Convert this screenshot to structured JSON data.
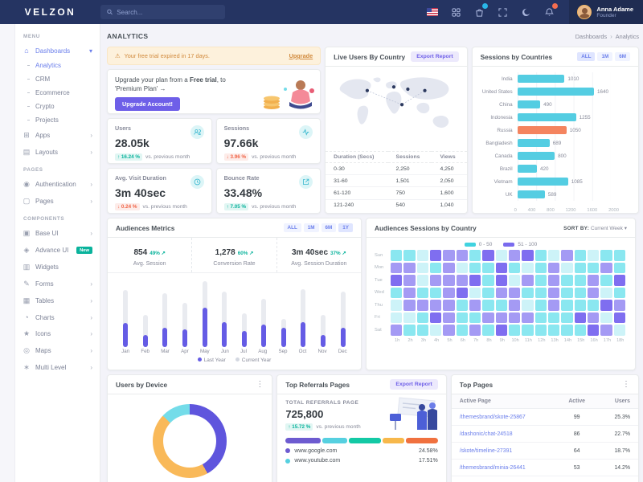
{
  "header": {
    "brand": "VELZON",
    "search_placeholder": "Search...",
    "user": {
      "name": "Anna Adame",
      "role": "Founder"
    }
  },
  "sidebar": {
    "sections": [
      {
        "label": "MENU",
        "items": [
          {
            "glyph": "⌂",
            "label": "Dashboards",
            "active": true,
            "caret": "▾",
            "sub": [
              {
                "label": "Analytics",
                "active": true
              },
              {
                "label": "CRM"
              },
              {
                "label": "Ecommerce"
              },
              {
                "label": "Crypto"
              },
              {
                "label": "Projects"
              }
            ]
          },
          {
            "glyph": "⊞",
            "label": "Apps",
            "chevron": "›"
          },
          {
            "glyph": "▤",
            "label": "Layouts",
            "chevron": "›"
          }
        ]
      },
      {
        "label": "PAGES",
        "items": [
          {
            "glyph": "◉",
            "label": "Authentication",
            "chevron": "›"
          },
          {
            "glyph": "▢",
            "label": "Pages",
            "chevron": "›"
          }
        ]
      },
      {
        "label": "COMPONENTS",
        "items": [
          {
            "glyph": "▣",
            "label": "Base UI",
            "chevron": "›"
          },
          {
            "glyph": "◈",
            "label": "Advance UI",
            "badge": "New"
          },
          {
            "glyph": "▥",
            "label": "Widgets"
          },
          {
            "glyph": "✎",
            "label": "Forms",
            "chevron": "›"
          },
          {
            "glyph": "▦",
            "label": "Tables",
            "chevron": "›"
          },
          {
            "glyph": "◔",
            "label": "Charts",
            "chevron": "›"
          },
          {
            "glyph": "★",
            "label": "Icons",
            "chevron": "›"
          },
          {
            "glyph": "◎",
            "label": "Maps",
            "chevron": "›"
          },
          {
            "glyph": "∗",
            "label": "Multi Level",
            "chevron": "›"
          }
        ]
      }
    ]
  },
  "page": {
    "title": "ANALYTICS",
    "breadcrumb_root": "Dashboards",
    "breadcrumb_sep": "›",
    "breadcrumb_current": "Analytics"
  },
  "trial_alert": {
    "icon": "⚠",
    "text": "Your free trial expired in 17 days.",
    "link": "Upgrade"
  },
  "upgrade_card": {
    "prefix": "Upgrade your plan from a ",
    "bold": "Free trial",
    "suffix": ", to 'Premium Plan'",
    "arrow": "→",
    "button": "Upgrade Account!"
  },
  "stat_cards": [
    {
      "label": "Users",
      "value": "28.05k",
      "arrow": "↑",
      "delta": "16.24 %",
      "direction": "up",
      "note": "vs. previous month"
    },
    {
      "label": "Sessions",
      "value": "97.66k",
      "arrow": "↓",
      "delta": "3.96 %",
      "direction": "down",
      "note": "vs. previous month"
    },
    {
      "label": "Avg. Visit Duration",
      "value": "3m 40sec",
      "arrow": "↓",
      "delta": "0.24 %",
      "direction": "down",
      "note": "vs. previous month"
    },
    {
      "label": "Bounce Rate",
      "value": "33.48%",
      "arrow": "↑",
      "delta": "7.05 %",
      "direction": "up",
      "note": "vs. previous month"
    }
  ],
  "live_users": {
    "title": "Live Users By Country",
    "export_button": "Export Report",
    "table": {
      "headers": [
        "Duration (Secs)",
        "Sessions",
        "Views"
      ],
      "rows": [
        [
          "0-30",
          "2,250",
          "4,250"
        ],
        [
          "31-60",
          "1,501",
          "2,050"
        ],
        [
          "61-120",
          "750",
          "1,600"
        ],
        [
          "121-240",
          "540",
          "1,040"
        ]
      ]
    }
  },
  "sessions_by_countries": {
    "title": "Sessions by Countries",
    "filters": [
      "ALL",
      "1M",
      "6M"
    ],
    "active_filter": "ALL",
    "chart_data": {
      "type": "bar",
      "orientation": "horizontal",
      "categories": [
        "India",
        "United States",
        "China",
        "Indonesia",
        "Russia",
        "Bangladesh",
        "Canada",
        "Brazil",
        "Vietnam",
        "UK"
      ],
      "values": [
        1010,
        1640,
        490,
        1255,
        1050,
        689,
        800,
        420,
        1085,
        589
      ],
      "highlight_category": "Russia",
      "bar_color": "#54cde2",
      "highlight_color": "#f4845f",
      "xticks": [
        "0",
        "400",
        "800",
        "1200",
        "1600",
        "2000"
      ],
      "xlim": [
        0,
        2000
      ]
    }
  },
  "audiences_metrics": {
    "title": "Audiences Metrics",
    "filters": [
      "ALL",
      "1M",
      "6M",
      "1Y"
    ],
    "stats": [
      {
        "value": "854",
        "delta": "49% ↗",
        "label": "Avg. Session"
      },
      {
        "value": "1,278",
        "delta": "60% ↗",
        "label": "Conversion Rate"
      },
      {
        "value": "3m 40sec",
        "delta": "37% ↗",
        "label": "Avg. Session Duration"
      }
    ],
    "chart_data": {
      "type": "bar",
      "categories": [
        "Jan",
        "Feb",
        "Mar",
        "Apr",
        "May",
        "Jun",
        "Jul",
        "Aug",
        "Sep",
        "Oct",
        "Nov",
        "Dec"
      ],
      "series": [
        {
          "name": "Last Year",
          "color": "#655ce5",
          "values": [
            36,
            18,
            28,
            26,
            58,
            37,
            24,
            33,
            28,
            37,
            18,
            28
          ]
        },
        {
          "name": "Current Year",
          "color": "#e9ebf0",
          "values": [
            85,
            48,
            80,
            66,
            98,
            82,
            50,
            72,
            42,
            86,
            48,
            82
          ]
        }
      ],
      "legend": [
        "Last Year",
        "Current Year"
      ],
      "ylim": [
        0,
        100
      ]
    }
  },
  "audiences_sessions": {
    "title": "Audiences Sessions by Country",
    "sort_label": "SORT BY:",
    "sort_value": "Current Week",
    "sort_caret": "▾",
    "legend": [
      {
        "label": "0 - 50",
        "color": "#41d3e0"
      },
      {
        "label": "51 - 100",
        "color": "#7a6bee"
      }
    ],
    "chart_data": {
      "type": "heatmap",
      "days": [
        "Sun",
        "Mon",
        "Tue",
        "Wed",
        "Thu",
        "Fri",
        "Sat"
      ],
      "hours": [
        "1h",
        "2h",
        "3h",
        "4h",
        "5h",
        "6h",
        "7h",
        "8h",
        "9h",
        "10h",
        "11h",
        "12h",
        "13h",
        "14h",
        "15h",
        "16h",
        "17h",
        "18h"
      ],
      "values": [
        [
          30,
          45,
          15,
          80,
          75,
          60,
          40,
          85,
          20,
          70,
          90,
          35,
          25,
          75,
          30,
          15,
          40,
          35
        ],
        [
          70,
          65,
          20,
          35,
          60,
          15,
          30,
          45,
          85,
          40,
          25,
          35,
          70,
          20,
          40,
          30,
          75,
          45
        ],
        [
          85,
          60,
          25,
          70,
          65,
          75,
          80,
          30,
          85,
          15,
          70,
          40,
          60,
          45,
          35,
          75,
          50,
          80
        ],
        [
          40,
          70,
          35,
          30,
          75,
          80,
          25,
          40,
          65,
          75,
          45,
          40,
          70,
          50,
          35,
          60,
          20,
          45
        ],
        [
          20,
          75,
          60,
          70,
          65,
          30,
          75,
          40,
          35,
          70,
          25,
          35,
          65,
          45,
          40,
          30,
          85,
          75
        ],
        [
          15,
          25,
          30,
          80,
          65,
          35,
          40,
          70,
          60,
          75,
          70,
          35,
          45,
          30,
          85,
          70,
          25,
          80
        ],
        [
          75,
          30,
          40,
          25,
          55,
          35,
          70,
          45,
          85,
          50,
          40,
          35,
          45,
          30,
          40,
          80,
          55,
          25
        ]
      ]
    }
  },
  "users_by_device": {
    "title": "Users by Device",
    "menu_icon": "⋮",
    "chart_data": {
      "type": "pie",
      "segments": [
        {
          "name": "indigo-segment",
          "pct": 42,
          "color": "#5f55dd"
        },
        {
          "name": "orange-segment",
          "pct": 45,
          "color": "#f9b959"
        },
        {
          "name": "teal-segment",
          "pct": 13,
          "color": "#74dce9"
        }
      ]
    }
  },
  "top_referrals": {
    "title": "Top Referrals Pages",
    "export_button": "Export Report",
    "total_label": "TOTAL REFERRALS PAGE",
    "total": "725,800",
    "arrow": "↑",
    "delta": "15.72 %",
    "note": "vs. previous month",
    "progress": [
      {
        "color": "#6d5bd0",
        "pct": 24
      },
      {
        "color": "#56d0e0",
        "pct": 17
      },
      {
        "color": "#13c9a5",
        "pct": 22
      },
      {
        "color": "#f7b84b",
        "pct": 15
      },
      {
        "color": "#f0713f",
        "pct": 22
      }
    ],
    "rows": [
      {
        "color": "#6d5bd0",
        "label": "www.google.com",
        "value": "24.58%"
      },
      {
        "color": "#56d0e0",
        "label": "www.youtube.com",
        "value": "17.51%"
      }
    ]
  },
  "top_pages": {
    "title": "Top Pages",
    "menu_icon": "⋮",
    "table": {
      "headers": [
        "Active Page",
        "Active",
        "Users"
      ],
      "rows": [
        {
          "page": "/themesbrand/skote-25867",
          "active": "99",
          "users": "25.3%"
        },
        {
          "page": "/dashonic/chat-24518",
          "active": "86",
          "users": "22.7%"
        },
        {
          "page": "/skote/timeline-27391",
          "active": "64",
          "users": "18.7%"
        },
        {
          "page": "/themesbrand/minia-26441",
          "active": "53",
          "users": "14.2%"
        }
      ]
    }
  }
}
